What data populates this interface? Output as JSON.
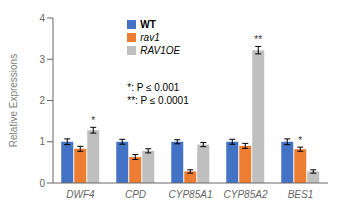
{
  "chart_data": {
    "type": "bar",
    "categories": [
      "DWF4",
      "CPD",
      "CYP85A1",
      "CYP85A2",
      "BES1"
    ],
    "series": [
      {
        "name": "WT",
        "color": "#4472C4",
        "values": [
          1.0,
          1.0,
          1.0,
          1.0,
          1.0
        ],
        "errors": [
          0.07,
          0.06,
          0.05,
          0.06,
          0.07
        ]
      },
      {
        "name": "rav1",
        "color": "#ED7D31",
        "values": [
          0.83,
          0.63,
          0.28,
          0.9,
          0.82
        ],
        "errors": [
          0.06,
          0.06,
          0.04,
          0.06,
          0.05
        ],
        "sig_labels": [
          null,
          null,
          null,
          null,
          "*"
        ]
      },
      {
        "name": "RAV1OE",
        "color": "#BFBFBF",
        "values": [
          1.28,
          0.78,
          0.93,
          3.22,
          0.28
        ],
        "errors": [
          0.07,
          0.05,
          0.05,
          0.09,
          0.04
        ],
        "sig_labels": [
          "*",
          null,
          null,
          "**",
          null
        ]
      }
    ],
    "ylabel": "Relative Expressions",
    "ylim": [
      0,
      4
    ],
    "yticks": [
      0,
      1,
      2,
      3,
      4
    ],
    "legend": "upper left",
    "annotations": [
      "*: P ≤ 0.001",
      "**: P ≤ 0.0001"
    ]
  }
}
